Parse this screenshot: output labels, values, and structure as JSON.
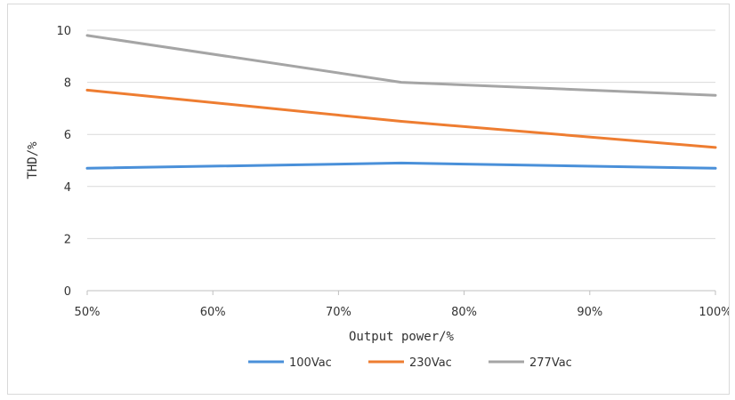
{
  "chart_data": {
    "type": "line",
    "title": "",
    "xlabel": "Output power/%",
    "ylabel": "THD/%",
    "x": [
      50,
      75,
      100
    ],
    "x_ticks": [
      "50%",
      "60%",
      "70%",
      "80%",
      "90%",
      "100%"
    ],
    "x_tick_values": [
      50,
      60,
      70,
      80,
      90,
      100
    ],
    "y_ticks": [
      "0",
      "2",
      "4",
      "6",
      "8",
      "10"
    ],
    "y_tick_values": [
      0,
      2,
      4,
      6,
      8,
      10
    ],
    "xlim": [
      50,
      100
    ],
    "ylim": [
      0,
      10
    ],
    "grid": "horizontal",
    "legend_position": "bottom",
    "series": [
      {
        "name": "100Vac",
        "color": "#4a90d9",
        "values": [
          4.7,
          4.9,
          4.7
        ]
      },
      {
        "name": "230Vac",
        "color": "#ee7d31",
        "values": [
          7.7,
          6.5,
          5.5
        ]
      },
      {
        "name": "277Vac",
        "color": "#a5a5a5",
        "values": [
          9.8,
          8.0,
          7.5
        ]
      }
    ]
  }
}
